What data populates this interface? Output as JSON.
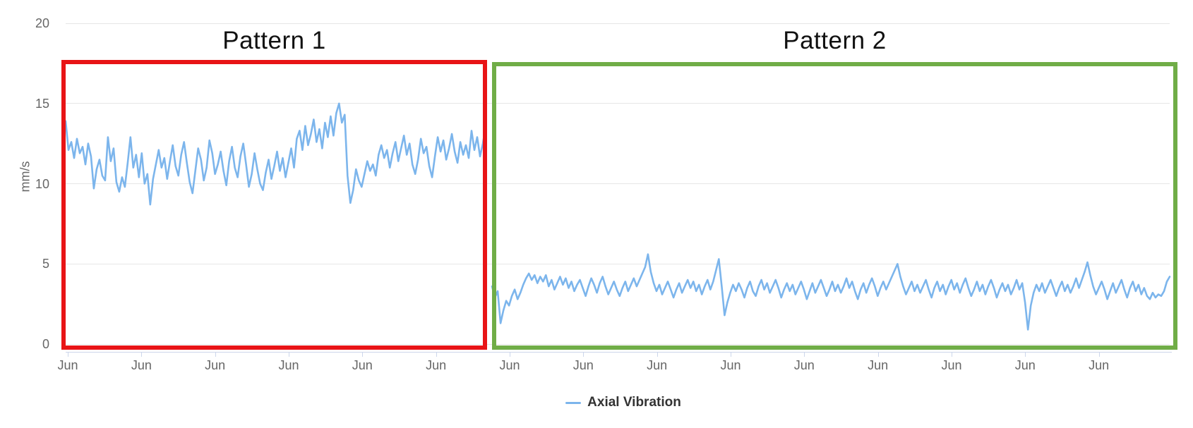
{
  "annotations": {
    "pattern1": {
      "label": "Pattern 1",
      "color": "#e81416"
    },
    "pattern2": {
      "label": "Pattern 2",
      "color": "#70ad47"
    }
  },
  "legend": {
    "series_label": "Axial Vibration",
    "marker_color": "#7cb5ec"
  },
  "axis_colors": {
    "grid": "#e6e6e6",
    "axis_line": "#ccd6eb",
    "tick_label": "#666666"
  },
  "chart_data": {
    "type": "line",
    "title": "",
    "xlabel": "",
    "ylabel": "mm/s",
    "ylim": [
      0,
      20
    ],
    "yticks": [
      0,
      5,
      10,
      15,
      20
    ],
    "xticklabels": [
      "Jun",
      "Jun",
      "Jun",
      "Jun",
      "Jun",
      "Jun",
      "Jun",
      "Jun",
      "Jun",
      "Jun",
      "Jun",
      "Jun",
      "Jun",
      "Jun",
      "Jun"
    ],
    "grid": "horizontal",
    "legend_position": "bottom-center",
    "series": [
      {
        "name": "Axial Vibration",
        "color": "#7cb5ec",
        "segments": [
          {
            "name": "pattern-1",
            "values": [
              13.9,
              12.1,
              12.6,
              11.6,
              12.8,
              11.9,
              12.3,
              11.2,
              12.5,
              11.7,
              9.7,
              10.9,
              11.5,
              10.5,
              10.2,
              12.9,
              11.4,
              12.2,
              10.1,
              9.5,
              10.4,
              9.8,
              11.3,
              12.9,
              11.0,
              11.8,
              10.4,
              11.9,
              10.0,
              10.6,
              8.7,
              10.3,
              11.2,
              12.1,
              11.0,
              11.6,
              10.3,
              11.4,
              12.4,
              11.1,
              10.5,
              11.8,
              12.6,
              11.3,
              10.1,
              9.4,
              10.8,
              12.2,
              11.5,
              10.2,
              11.0,
              12.7,
              11.9,
              10.6,
              11.2,
              12.0,
              10.8,
              9.9,
              11.4,
              12.3,
              11.0,
              10.4,
              11.7,
              12.5,
              11.2,
              9.8,
              10.6,
              11.9,
              10.9,
              10.0,
              9.6,
              10.7,
              11.5,
              10.3,
              11.1,
              12.0,
              10.8,
              11.6,
              10.4,
              11.3,
              12.2,
              11.0,
              12.8,
              13.3,
              12.1,
              13.6,
              12.4,
              13.1,
              14.0,
              12.6,
              13.4,
              12.2,
              13.8,
              12.9,
              14.2,
              13.0,
              14.4,
              15.0,
              13.8,
              14.3,
              10.5,
              8.8,
              9.6,
              10.9,
              10.2,
              9.8,
              10.6,
              11.4,
              10.8,
              11.2,
              10.5,
              11.8,
              12.4,
              11.6,
              12.1,
              11.0,
              11.9,
              12.6,
              11.4,
              12.2,
              13.0,
              11.8,
              12.5,
              11.2,
              10.6,
              11.5,
              12.8,
              11.9,
              12.3,
              11.1,
              10.4,
              11.7,
              12.9,
              12.0,
              12.7,
              11.5,
              12.2,
              13.1,
              12.0,
              11.3,
              12.6,
              11.8,
              12.4,
              11.6,
              13.3,
              12.1,
              12.9,
              11.7,
              12.5,
              13.6
            ]
          },
          {
            "name": "pattern-2",
            "values": [
              3.6,
              2.9,
              3.3,
              1.3,
              2.1,
              2.7,
              2.4,
              3.0,
              3.4,
              2.8,
              3.2,
              3.7,
              4.1,
              4.4,
              4.0,
              4.3,
              3.8,
              4.2,
              3.9,
              4.3,
              3.6,
              4.0,
              3.4,
              3.8,
              4.2,
              3.7,
              4.1,
              3.5,
              3.9,
              3.3,
              3.7,
              4.0,
              3.5,
              3.0,
              3.6,
              4.1,
              3.7,
              3.2,
              3.8,
              4.2,
              3.6,
              3.1,
              3.5,
              3.9,
              3.4,
              3.0,
              3.5,
              3.9,
              3.3,
              3.7,
              4.1,
              3.6,
              4.0,
              4.4,
              4.8,
              5.6,
              4.5,
              3.8,
              3.3,
              3.7,
              3.1,
              3.5,
              3.9,
              3.4,
              2.9,
              3.4,
              3.8,
              3.2,
              3.6,
              4.0,
              3.5,
              3.9,
              3.3,
              3.7,
              3.1,
              3.6,
              4.0,
              3.4,
              3.9,
              4.6,
              5.3,
              3.6,
              1.8,
              2.6,
              3.2,
              3.7,
              3.3,
              3.8,
              3.4,
              2.9,
              3.5,
              3.9,
              3.3,
              3.0,
              3.6,
              4.0,
              3.4,
              3.8,
              3.2,
              3.6,
              4.0,
              3.5,
              2.9,
              3.4,
              3.8,
              3.3,
              3.7,
              3.1,
              3.5,
              3.9,
              3.4,
              2.8,
              3.3,
              3.8,
              3.2,
              3.6,
              4.0,
              3.5,
              3.0,
              3.4,
              3.9,
              3.3,
              3.7,
              3.2,
              3.6,
              4.1,
              3.5,
              3.9,
              3.3,
              2.8,
              3.4,
              3.8,
              3.2,
              3.7,
              4.1,
              3.6,
              3.0,
              3.5,
              3.9,
              3.4,
              3.8,
              4.2,
              4.6,
              5.0,
              4.2,
              3.6,
              3.1,
              3.5,
              3.9,
              3.3,
              3.7,
              3.2,
              3.6,
              4.0,
              3.4,
              2.9,
              3.5,
              3.9,
              3.3,
              3.7,
              3.1,
              3.6,
              4.0,
              3.4,
              3.8,
              3.2,
              3.7,
              4.1,
              3.5,
              3.0,
              3.4,
              3.9,
              3.3,
              3.7,
              3.1,
              3.6,
              4.0,
              3.5,
              2.9,
              3.4,
              3.8,
              3.3,
              3.7,
              3.1,
              3.5,
              4.0,
              3.4,
              3.8,
              2.6,
              0.9,
              2.4,
              3.2,
              3.7,
              3.3,
              3.8,
              3.2,
              3.6,
              4.0,
              3.5,
              3.0,
              3.5,
              3.9,
              3.3,
              3.7,
              3.2,
              3.6,
              4.1,
              3.5,
              4.0,
              4.5,
              5.1,
              4.3,
              3.6,
              3.1,
              3.5,
              3.9,
              3.4,
              2.8,
              3.3,
              3.8,
              3.2,
              3.6,
              4.0,
              3.4,
              2.9,
              3.5,
              3.9,
              3.3,
              3.7,
              3.1,
              3.5,
              3.0,
              2.8,
              3.2,
              2.9,
              3.1,
              3.0,
              3.3,
              3.9,
              4.2
            ]
          }
        ]
      }
    ]
  }
}
